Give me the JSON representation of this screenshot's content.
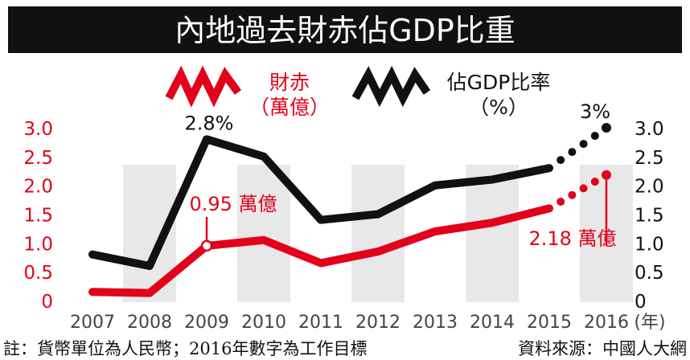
{
  "chart_data": {
    "type": "line",
    "title": "內地過去財赤佔GDP比重",
    "categories": [
      "2007",
      "2008",
      "2009",
      "2010",
      "2011",
      "2012",
      "2013",
      "2014",
      "2015",
      "2016"
    ],
    "x_unit": "(年)",
    "series": [
      {
        "name": "財赤（萬億）",
        "legend_line1": "財赤",
        "legend_line2": "（萬億）",
        "axis": "left",
        "color": "#e3001b",
        "values": [
          0.15,
          0.13,
          0.95,
          1.05,
          0.65,
          0.85,
          1.2,
          1.35,
          1.6,
          2.18
        ],
        "forecast_from_index": 8
      },
      {
        "name": "佔GDP比率（%）",
        "legend_line1": "佔GDP比率",
        "legend_line2": "（%）",
        "axis": "right",
        "color": "#111111",
        "values": [
          0.8,
          0.6,
          2.8,
          2.5,
          1.4,
          1.5,
          2.0,
          2.1,
          2.3,
          3.0
        ],
        "forecast_from_index": 8
      }
    ],
    "ylim_left": [
      0,
      3.0
    ],
    "ylim_right": [
      0,
      3.0
    ],
    "yticks_left": [
      "0",
      "0.5",
      "1.0",
      "1.5",
      "2.0",
      "2.5",
      "3.0"
    ],
    "yticks_right": [
      "0",
      "0.5",
      "1.0",
      "1.5",
      "2.0",
      "2.5",
      "3.0"
    ],
    "annotations": {
      "ratio_2009": "2.8%",
      "ratio_2016": "3%",
      "deficit_2009": "0.95 萬億",
      "deficit_2016": "2.18 萬億"
    },
    "legend_position": "top",
    "grid": false
  },
  "footer": {
    "note": "註：貨幣單位為人民幣；2016年數字為工作目標",
    "source": "資料來源：中國人大網"
  },
  "colors": {
    "header_bg": "#111111",
    "header_text": "#ffffff",
    "red": "#e3001b",
    "black": "#111111",
    "band": "#e8e8e8"
  }
}
